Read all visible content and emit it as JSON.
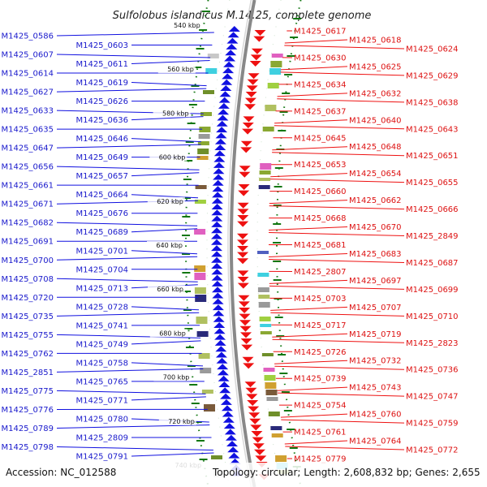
{
  "title": "Sulfolobus islandicus M.14.25, complete genome",
  "footer": {
    "accession": "Accession: NC_012588",
    "topology": "Topology: circular; Length: 2,608,832 bp; Genes: 2,655"
  },
  "colors": {
    "backbone": "#888888",
    "left_strand": "#1010e0",
    "right_strand": "#ee1111",
    "left_label": "#1a1acc",
    "right_label": "#dd1111",
    "tick": "#117711"
  },
  "kbp_marks": [
    "540 kbp",
    "560 kbp",
    "580 kbp",
    "600 kbp",
    "620 kbp",
    "640 kbp",
    "660 kbp",
    "680 kbp",
    "700 kbp",
    "720 kbp",
    "740 kbp"
  ],
  "left_labels": [
    "M1425_0586",
    "M1425_0603",
    "M1425_0607",
    "M1425_0611",
    "M1425_0614",
    "M1425_0619",
    "M1425_0627",
    "M1425_0626",
    "M1425_0633",
    "M1425_0636",
    "M1425_0635",
    "M1425_0646",
    "M1425_0647",
    "M1425_0649",
    "M1425_0656",
    "M1425_0657",
    "M1425_0661",
    "M1425_0664",
    "M1425_0671",
    "M1425_0676",
    "M1425_0682",
    "M1425_0689",
    "M1425_0691",
    "M1425_0701",
    "M1425_0700",
    "M1425_0704",
    "M1425_0708",
    "M1425_0713",
    "M1425_0720",
    "M1425_0728",
    "M1425_0735",
    "M1425_0741",
    "M1425_0755",
    "M1425_0749",
    "M1425_0762",
    "M1425_0758",
    "M1425_2851",
    "M1425_0765",
    "M1425_0775",
    "M1425_0771",
    "M1425_0776",
    "M1425_0780",
    "M1425_0789",
    "M1425_2809",
    "M1425_0798",
    "M1425_0791"
  ],
  "right_labels": [
    "M1425_0617",
    "M1425_0618",
    "M1425_0624",
    "M1425_0630",
    "M1425_0625",
    "M1425_0629",
    "M1425_0634",
    "M1425_0632",
    "M1425_0638",
    "M1425_0637",
    "M1425_0640",
    "M1425_0643",
    "M1425_0645",
    "M1425_0648",
    "M1425_0651",
    "M1425_0653",
    "M1425_0654",
    "M1425_0655",
    "M1425_0660",
    "M1425_0662",
    "M1425_0666",
    "M1425_0668",
    "M1425_0670",
    "M1425_2849",
    "M1425_0681",
    "M1425_0683",
    "M1425_0687",
    "M1425_2807",
    "M1425_0697",
    "M1425_0699",
    "M1425_0703",
    "M1425_0707",
    "M1425_0710",
    "M1425_0717",
    "M1425_0719",
    "M1425_2823",
    "M1425_0726",
    "M1425_0732",
    "M1425_0736",
    "M1425_0739",
    "M1425_0743",
    "M1425_0747",
    "M1425_0754",
    "M1425_0760",
    "M1425_0759",
    "M1425_0761",
    "M1425_0764",
    "M1425_0772",
    "M1425_0779"
  ]
}
